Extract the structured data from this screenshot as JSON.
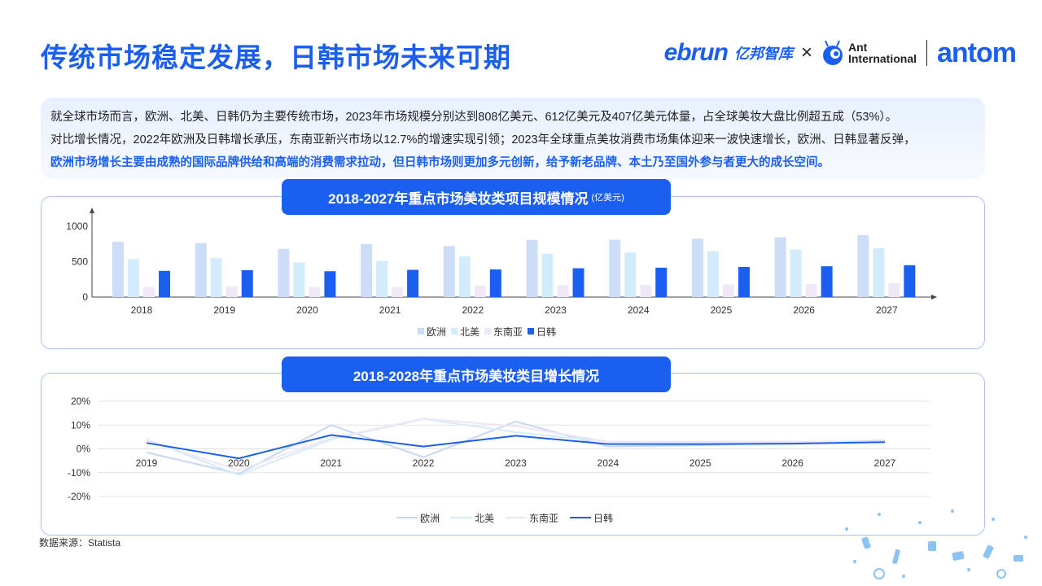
{
  "title": "传统市场稳定发展，日韩市场未来可期",
  "logos": {
    "ebrun": "ebrun",
    "ebrun_cn": "亿邦智库",
    "x": "×",
    "ant_line1": "Ant",
    "ant_line2": "International",
    "antom": "antom"
  },
  "summary": {
    "line1": "就全球市场而言，欧洲、北美、日韩仍为主要传统市场，2023年市场规模分别达到808亿美元、612亿美元及407亿美元体量，占全球美妆大盘比例超五成（53%）。",
    "line2": "对比增长情况，2022年欧洲及日韩增长承压，东南亚新兴市场以12.7%的增速实现引领；2023年全球重点美妆消费市场集体迎来一波快速增长，欧洲、日韩显著反弹，",
    "line3": "欧洲市场增长主要由成熟的国际品牌供给和高端的消费需求拉动，但日韩市场则更加多元创新，给予新老品牌、本土乃至国外参与者更大的成长空间。"
  },
  "chart1_badge": {
    "title": "2018-2027年重点市场美妆类项目规模情况",
    "unit": "(亿美元)"
  },
  "chart2_badge": {
    "title": "2018-2028年重点市场美妆类目增长情况"
  },
  "source": "数据来源：Statista",
  "chart_data": [
    {
      "type": "bar",
      "title": "2018-2027年重点市场美妆类项目规模情况",
      "unit": "亿美元",
      "categories": [
        "2018",
        "2019",
        "2020",
        "2021",
        "2022",
        "2023",
        "2024",
        "2025",
        "2026",
        "2027"
      ],
      "yticks": [
        0,
        500,
        1000
      ],
      "ylim": [
        0,
        1000
      ],
      "legend_position": "bottom",
      "grid": false,
      "series": [
        {
          "name": "欧洲",
          "color": "#cddcf7",
          "values": [
            780,
            765,
            680,
            750,
            720,
            808,
            810,
            825,
            845,
            875
          ]
        },
        {
          "name": "北美",
          "color": "#d3ecfb",
          "values": [
            535,
            550,
            490,
            510,
            575,
            612,
            630,
            650,
            670,
            690
          ]
        },
        {
          "name": "东南亚",
          "color": "#efe8f7",
          "values": [
            145,
            150,
            140,
            145,
            160,
            170,
            175,
            180,
            185,
            195
          ]
        },
        {
          "name": "日韩",
          "color": "#1a5ff0",
          "values": [
            370,
            380,
            365,
            385,
            390,
            407,
            415,
            425,
            435,
            450
          ]
        }
      ]
    },
    {
      "type": "line",
      "title": "2018-2028年重点市场美妆类目增长情况",
      "categories": [
        "2019",
        "2020",
        "2021",
        "2022",
        "2023",
        "2024",
        "2025",
        "2026",
        "2027"
      ],
      "yticks": [
        20,
        10,
        0,
        -10,
        -20
      ],
      "yticklabels": [
        "20%",
        "10%",
        "0%",
        "-10%",
        "-20%"
      ],
      "ylim": [
        -20,
        20
      ],
      "grid": true,
      "legend_position": "bottom",
      "series": [
        {
          "name": "欧洲",
          "color": "#c7d7f5",
          "values": [
            -1.5,
            -10.5,
            10,
            -3.5,
            11.5,
            1,
            1.5,
            2.5,
            3.5
          ]
        },
        {
          "name": "北美",
          "color": "#d4ecfa",
          "values": [
            4,
            -11,
            4,
            12.5,
            7,
            3,
            3,
            3,
            3
          ]
        },
        {
          "name": "东南亚",
          "color": "#eee6f6",
          "values": [
            3.5,
            -9,
            4.5,
            12.7,
            9.5,
            3,
            3,
            3,
            3
          ]
        },
        {
          "name": "日韩",
          "color": "#1a5ff0",
          "values": [
            2.5,
            -4,
            5.8,
            1,
            5.5,
            2,
            2,
            2.2,
            2.8
          ]
        }
      ]
    }
  ]
}
